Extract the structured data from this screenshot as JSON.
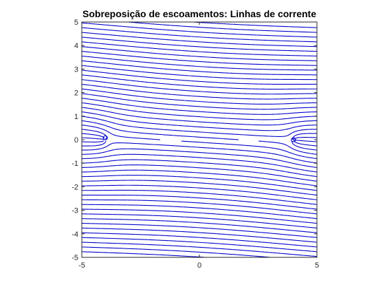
{
  "chart_data": {
    "type": "line",
    "title": "Sobreposição de escoamentos: Linhas de corrente",
    "xlabel": "",
    "ylabel": "",
    "xlim": [
      -5,
      5
    ],
    "ylim": [
      -5,
      5
    ],
    "x_ticks": [
      "-5",
      "0",
      "5"
    ],
    "y_ticks": [
      "-5",
      "-4",
      "-3",
      "-2",
      "-1",
      "0",
      "1",
      "2",
      "3",
      "4",
      "5"
    ],
    "grid": false,
    "legend": "none",
    "line_color": "#0000cc",
    "axis_color": "#262626",
    "flow": {
      "uniform_slope": -0.06,
      "sources": [
        {
          "x": -4,
          "y": 0,
          "strength": -1
        },
        {
          "x": 4,
          "y": 0,
          "strength": 1
        }
      ],
      "stagnation_points": [
        {
          "x": -4,
          "y": 0.08
        },
        {
          "x": 4,
          "y": 0.0
        }
      ]
    }
  }
}
